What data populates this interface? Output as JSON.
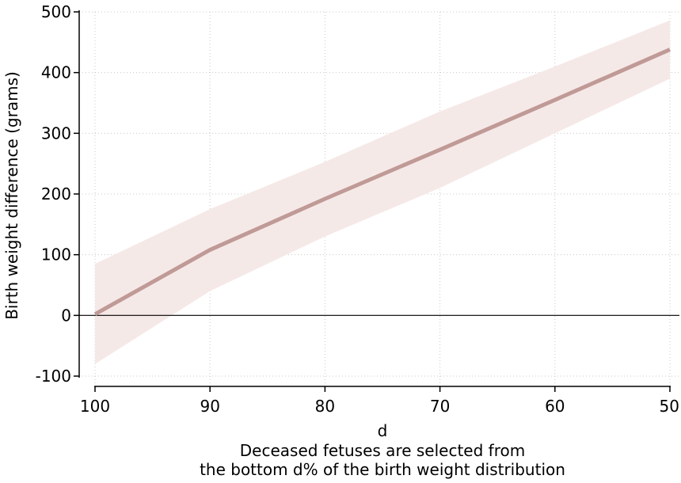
{
  "chart_data": {
    "type": "line",
    "title": "",
    "xlabel": "d",
    "xlabel_lines": [
      "Deceased fetuses are selected from",
      "the bottom d% of the birth weight distribution"
    ],
    "ylabel": "Birth weight difference (grams)",
    "xlim": [
      100,
      50
    ],
    "ylim": [
      -100,
      500
    ],
    "xticks": [
      100,
      90,
      80,
      70,
      60,
      50
    ],
    "yticks": [
      -100,
      0,
      100,
      200,
      300,
      400,
      500
    ],
    "xtick_labels": [
      "100",
      "90",
      "80",
      "70",
      "60",
      "50"
    ],
    "ytick_labels": [
      "-100",
      "0",
      "100",
      "200",
      "300",
      "400",
      "500"
    ],
    "grid": true,
    "reference_line_y": 0,
    "series": [
      {
        "x": [
          100,
          90,
          80,
          70,
          60,
          50
        ],
        "y": [
          2,
          108,
          192,
          273,
          355,
          438
        ],
        "ci_lower": [
          -80,
          40,
          130,
          210,
          300,
          390
        ],
        "ci_upper": [
          85,
          175,
          253,
          336,
          410,
          486
        ]
      }
    ],
    "colors": {
      "line": "#c09a96",
      "band": "#f5e9e8",
      "grid": "#c8c8c8",
      "axis": "#000000"
    }
  }
}
